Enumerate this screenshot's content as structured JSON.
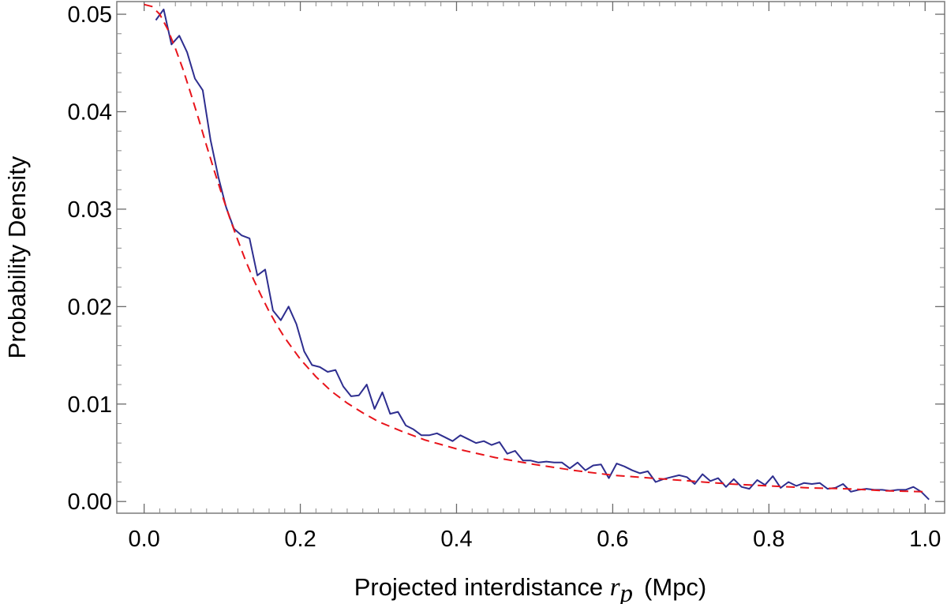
{
  "chart_data": {
    "type": "line",
    "xlabel_parts": {
      "pre": "Projected interdistance ",
      "var": "r",
      "sub": "p",
      "unit": "(Mpc)"
    },
    "ylabel": "Probability Density",
    "xlim": [
      -0.035,
      1.025
    ],
    "ylim": [
      -0.0012,
      0.0513
    ],
    "x_ticks": [
      0.0,
      0.2,
      0.4,
      0.6,
      0.8,
      1.0
    ],
    "x_tick_labels": [
      "0.0",
      "0.2",
      "0.4",
      "0.6",
      "0.8",
      "1.0"
    ],
    "y_ticks": [
      0.0,
      0.01,
      0.02,
      0.03,
      0.04,
      0.05
    ],
    "y_tick_labels": [
      "0.00",
      "0.01",
      "0.02",
      "0.03",
      "0.04",
      "0.05"
    ],
    "grid": false,
    "series": [
      {
        "color": "#2e2e8f",
        "style": "solid",
        "x": [
          0.015,
          0.025,
          0.035,
          0.045,
          0.055,
          0.065,
          0.075,
          0.085,
          0.095,
          0.105,
          0.115,
          0.125,
          0.135,
          0.145,
          0.155,
          0.165,
          0.175,
          0.185,
          0.195,
          0.205,
          0.215,
          0.225,
          0.235,
          0.245,
          0.255,
          0.265,
          0.275,
          0.285,
          0.295,
          0.305,
          0.315,
          0.325,
          0.335,
          0.345,
          0.355,
          0.365,
          0.375,
          0.385,
          0.395,
          0.405,
          0.415,
          0.425,
          0.435,
          0.445,
          0.455,
          0.465,
          0.475,
          0.485,
          0.495,
          0.505,
          0.515,
          0.525,
          0.535,
          0.545,
          0.555,
          0.565,
          0.575,
          0.585,
          0.595,
          0.605,
          0.615,
          0.625,
          0.635,
          0.645,
          0.655,
          0.665,
          0.675,
          0.685,
          0.695,
          0.705,
          0.715,
          0.725,
          0.735,
          0.745,
          0.755,
          0.765,
          0.775,
          0.785,
          0.795,
          0.805,
          0.815,
          0.825,
          0.835,
          0.845,
          0.855,
          0.865,
          0.875,
          0.885,
          0.895,
          0.905,
          0.915,
          0.925,
          0.935,
          0.945,
          0.955,
          0.965,
          0.975,
          0.985,
          0.995,
          1.005
        ],
        "y": [
          0.0494,
          0.0505,
          0.0469,
          0.0478,
          0.0461,
          0.0434,
          0.0422,
          0.0371,
          0.0333,
          0.0302,
          0.028,
          0.0273,
          0.027,
          0.0232,
          0.0238,
          0.0196,
          0.0186,
          0.02,
          0.0182,
          0.0154,
          0.014,
          0.0138,
          0.0133,
          0.0135,
          0.0118,
          0.0108,
          0.0109,
          0.012,
          0.0095,
          0.0112,
          0.009,
          0.0092,
          0.0078,
          0.0074,
          0.0068,
          0.0068,
          0.007,
          0.0066,
          0.0062,
          0.0068,
          0.0064,
          0.006,
          0.0062,
          0.0058,
          0.0061,
          0.0049,
          0.0052,
          0.0042,
          0.0042,
          0.004,
          0.0041,
          0.004,
          0.004,
          0.0034,
          0.004,
          0.0032,
          0.0037,
          0.0038,
          0.0024,
          0.0039,
          0.0036,
          0.0032,
          0.0029,
          0.0031,
          0.002,
          0.0023,
          0.0025,
          0.0027,
          0.0025,
          0.0018,
          0.0028,
          0.0021,
          0.0024,
          0.0015,
          0.0023,
          0.0015,
          0.0013,
          0.0022,
          0.0017,
          0.0026,
          0.0014,
          0.002,
          0.0016,
          0.0019,
          0.0018,
          0.0019,
          0.0013,
          0.0014,
          0.0018,
          0.001,
          0.0012,
          0.0013,
          0.0012,
          0.0012,
          0.0011,
          0.0012,
          0.0012,
          0.0015,
          0.001,
          0.0002
        ]
      },
      {
        "color": "#e8141b",
        "style": "dashed",
        "x": [
          0.0,
          0.01,
          0.02,
          0.03,
          0.04,
          0.05,
          0.06,
          0.07,
          0.08,
          0.09,
          0.1,
          0.11,
          0.12,
          0.13,
          0.14,
          0.15,
          0.16,
          0.17,
          0.18,
          0.19,
          0.2,
          0.22,
          0.24,
          0.26,
          0.28,
          0.3,
          0.33,
          0.36,
          0.4,
          0.45,
          0.5,
          0.55,
          0.6,
          0.65,
          0.7,
          0.75,
          0.8,
          0.85,
          0.9,
          0.95,
          1.0
        ],
        "y": [
          0.051,
          0.0508,
          0.05,
          0.0485,
          0.0465,
          0.0443,
          0.0418,
          0.0392,
          0.0365,
          0.0339,
          0.0314,
          0.029,
          0.0268,
          0.0247,
          0.0228,
          0.0211,
          0.0195,
          0.0181,
          0.0168,
          0.0157,
          0.0146,
          0.0128,
          0.0113,
          0.0101,
          0.0091,
          0.0082,
          0.0072,
          0.0063,
          0.0054,
          0.0045,
          0.0038,
          0.0032,
          0.0027,
          0.0024,
          0.0021,
          0.0018,
          0.0016,
          0.0014,
          0.0013,
          0.0011,
          0.001
        ]
      }
    ]
  }
}
